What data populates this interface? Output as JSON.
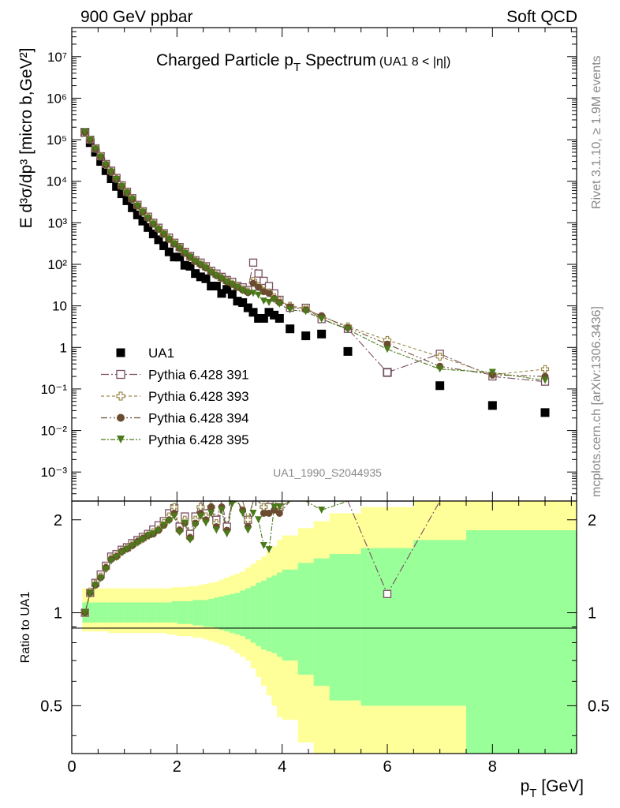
{
  "header": {
    "left": "900 GeV ppbar",
    "right": "Soft QCD"
  },
  "side_text": {
    "top": "Rivet 3.1.10, ≥ 1.9M events",
    "bottom": "mcplots.cern.ch [arXiv:1306.3436]"
  },
  "colors": {
    "band_outer": "#ffff99",
    "band_inner": "#99ff99",
    "ua1": "#000000",
    "p391": "#7b4f63",
    "p393": "#9a8a4c",
    "p394": "#6b4c30",
    "p395": "#4a7a1a"
  },
  "chart_data": [
    {
      "type": "scatter",
      "title": "Charged Particle p",
      "title_sub": "T",
      "title_tail": " Spectrum",
      "title_extra": "(UA1   8 < |η|)",
      "ylabel": "E d³σ/dp³ [micro b,GeV²]",
      "yscale": "log",
      "ylim": [
        0.0002,
        50000000
      ],
      "xlim": [
        0,
        9.6
      ],
      "yticks": [
        "10⁻³",
        "10⁻²",
        "10⁻¹",
        "1",
        "10",
        "10²",
        "10³",
        "10⁴",
        "10⁵",
        "10⁶",
        "10⁷"
      ],
      "watermark": "UA1_1990_S2044935",
      "legend_position": "left",
      "series": [
        {
          "name": "UA1",
          "marker": "filled-square",
          "x": [
            0.25,
            0.35,
            0.45,
            0.55,
            0.65,
            0.75,
            0.85,
            0.95,
            1.05,
            1.15,
            1.25,
            1.35,
            1.45,
            1.55,
            1.65,
            1.75,
            1.85,
            1.95,
            2.05,
            2.15,
            2.25,
            2.35,
            2.45,
            2.55,
            2.65,
            2.75,
            2.85,
            2.95,
            3.05,
            3.15,
            3.25,
            3.35,
            3.45,
            3.55,
            3.65,
            3.75,
            3.85,
            3.95,
            4.15,
            4.45,
            4.75,
            5.25,
            6.0,
            7.0,
            8.0,
            9.0
          ],
          "y": [
            150000,
            85000,
            50000,
            30000,
            18000,
            11500,
            7500,
            5000,
            3400,
            2300,
            1550,
            1100,
            770,
            540,
            390,
            280,
            200,
            150,
            150,
            95,
            90,
            60,
            50,
            45,
            30,
            30,
            20,
            25,
            19,
            13,
            12,
            9,
            7,
            5,
            5,
            7,
            6,
            5,
            2.8,
            1.9,
            2.1,
            0.8,
            0.25,
            0.12,
            0.04,
            0.027
          ]
        },
        {
          "name": "Pythia 6.428 391",
          "marker": "open-square",
          "x": [
            0.25,
            0.35,
            0.45,
            0.55,
            0.65,
            0.75,
            0.85,
            0.95,
            1.05,
            1.15,
            1.25,
            1.35,
            1.45,
            1.55,
            1.65,
            1.75,
            1.85,
            1.95,
            2.05,
            2.15,
            2.25,
            2.35,
            2.45,
            2.55,
            2.65,
            2.75,
            2.85,
            2.95,
            3.05,
            3.15,
            3.25,
            3.35,
            3.45,
            3.55,
            3.65,
            3.75,
            3.85,
            3.95,
            4.15,
            4.45,
            4.75,
            5.25,
            6.0,
            7.0,
            8.0,
            9.0
          ],
          "y": [
            150000,
            100000,
            62000,
            40000,
            26000,
            18000,
            12000,
            8000,
            5600,
            3900,
            2700,
            1900,
            1400,
            1000,
            760,
            560,
            440,
            330,
            260,
            200,
            160,
            125,
            110,
            90,
            70,
            60,
            50,
            42,
            38,
            30,
            28,
            24,
            110,
            60,
            40,
            30,
            20,
            14,
            9,
            9,
            4.8,
            2.8,
            0.25,
            0.7,
            0.2,
            0.15
          ],
          "ratio": [
            1.0,
            1.16,
            1.25,
            1.33,
            1.42,
            1.52,
            1.55,
            1.6,
            1.63,
            1.68,
            1.72,
            1.76,
            1.8,
            1.86,
            1.92,
            1.98,
            2.1,
            2.18,
            1.9,
            2.05,
            1.8,
            2.05,
            2.3,
            2.1,
            2.3,
            2.0,
            2.5,
            1.9,
            2.6,
            2.6,
            2.4,
            2.0,
            3.0,
            3.0,
            2.3,
            2.2,
            2.3,
            2.2,
            2.8,
            3.0,
            2.3,
            3.0,
            1.15,
            3.0,
            3.0,
            3.0
          ]
        },
        {
          "name": "Pythia 6.428 393",
          "marker": "open-cross",
          "x": [
            0.25,
            0.35,
            0.45,
            0.55,
            0.65,
            0.75,
            0.85,
            0.95,
            1.05,
            1.15,
            1.25,
            1.35,
            1.45,
            1.55,
            1.65,
            1.75,
            1.85,
            1.95,
            2.05,
            2.15,
            2.25,
            2.35,
            2.45,
            2.55,
            2.65,
            2.75,
            2.85,
            2.95,
            3.05,
            3.15,
            3.25,
            3.35,
            3.45,
            3.55,
            3.65,
            3.75,
            3.85,
            3.95,
            4.15,
            4.45,
            4.75,
            5.25,
            6.0,
            7.0,
            8.0,
            9.0
          ],
          "y": [
            150000,
            100000,
            61000,
            40000,
            25000,
            17000,
            11500,
            7700,
            5400,
            3800,
            2600,
            1850,
            1350,
            960,
            720,
            540,
            410,
            320,
            250,
            190,
            150,
            120,
            100,
            85,
            67,
            55,
            47,
            40,
            34,
            29,
            25,
            22,
            40,
            30,
            23,
            21,
            16,
            13,
            10,
            8.8,
            5.5,
            3.2,
            1.5,
            0.6,
            0.22,
            0.3
          ],
          "ratio": [
            1.0,
            1.17,
            1.24,
            1.31,
            1.4,
            1.5,
            1.53,
            1.58,
            1.62,
            1.66,
            1.7,
            1.74,
            1.78,
            1.82,
            1.86,
            1.95,
            2.05,
            2.2,
            1.85,
            2.0,
            1.75,
            2.0,
            2.2,
            2.05,
            2.2,
            1.95,
            2.4,
            2.3,
            2.4,
            2.45,
            2.3,
            2.0,
            2.6,
            2.5,
            2.2,
            2.4,
            2.3,
            2.2,
            2.8,
            3.0,
            2.6,
            3.0,
            3.0,
            3.0,
            3.0,
            3.0
          ]
        },
        {
          "name": "Pythia 6.428 394",
          "marker": "filled-circle",
          "x": [
            0.25,
            0.35,
            0.45,
            0.55,
            0.65,
            0.75,
            0.85,
            0.95,
            1.05,
            1.15,
            1.25,
            1.35,
            1.45,
            1.55,
            1.65,
            1.75,
            1.85,
            1.95,
            2.05,
            2.15,
            2.25,
            2.35,
            2.45,
            2.55,
            2.65,
            2.75,
            2.85,
            2.95,
            3.05,
            3.15,
            3.25,
            3.35,
            3.45,
            3.55,
            3.65,
            3.75,
            3.85,
            3.95,
            4.15,
            4.45,
            4.75,
            5.25,
            6.0,
            7.0,
            8.0,
            9.0
          ],
          "y": [
            150000,
            98000,
            60000,
            39000,
            25000,
            17000,
            11300,
            7500,
            5300,
            3700,
            2550,
            1800,
            1300,
            930,
            700,
            530,
            400,
            310,
            245,
            185,
            150,
            118,
            98,
            82,
            65,
            54,
            46,
            38,
            33,
            28,
            24,
            21,
            35,
            28,
            22,
            20,
            15,
            12,
            9.5,
            8,
            5.8,
            3,
            1.2,
            0.35,
            0.22,
            0.2
          ],
          "ratio": [
            1.0,
            1.16,
            1.23,
            1.3,
            1.4,
            1.49,
            1.52,
            1.58,
            1.61,
            1.65,
            1.7,
            1.74,
            1.78,
            1.8,
            1.85,
            1.92,
            2.0,
            2.1,
            1.85,
            1.95,
            1.75,
            1.95,
            2.1,
            2.0,
            2.2,
            1.9,
            2.2,
            1.85,
            2.3,
            2.4,
            2.15,
            1.9,
            2.4,
            2.3,
            2.1,
            2.1,
            2.15,
            2.1,
            2.8,
            3.0,
            2.5,
            3.0,
            3.0,
            2.35,
            3.0,
            3.0
          ]
        },
        {
          "name": "Pythia 6.428 395",
          "marker": "filled-triangle-down",
          "x": [
            0.25,
            0.35,
            0.45,
            0.55,
            0.65,
            0.75,
            0.85,
            0.95,
            1.05,
            1.15,
            1.25,
            1.35,
            1.45,
            1.55,
            1.65,
            1.75,
            1.85,
            1.95,
            2.05,
            2.15,
            2.25,
            2.35,
            2.45,
            2.55,
            2.65,
            2.75,
            2.85,
            2.95,
            3.05,
            3.15,
            3.25,
            3.35,
            3.45,
            3.55,
            3.65,
            3.75,
            3.85,
            3.95,
            4.15,
            4.45,
            4.75,
            5.25,
            6.0,
            7.0,
            8.0,
            9.0
          ],
          "y": [
            150000,
            97000,
            59000,
            38000,
            24500,
            16500,
            11000,
            7400,
            5200,
            3650,
            2500,
            1780,
            1280,
            920,
            690,
            520,
            395,
            305,
            240,
            182,
            148,
            116,
            96,
            80,
            63,
            52,
            44,
            37,
            32,
            27,
            23,
            20,
            20,
            18,
            13,
            12,
            14,
            11,
            8,
            7.3,
            4.8,
            2.7,
            0.9,
            0.3,
            0.25,
            0.16
          ],
          "ratio": [
            1.0,
            1.15,
            1.22,
            1.29,
            1.38,
            1.47,
            1.51,
            1.56,
            1.6,
            1.64,
            1.68,
            1.72,
            1.77,
            1.8,
            1.84,
            1.92,
            1.98,
            2.05,
            1.82,
            1.95,
            1.72,
            1.92,
            2.05,
            1.95,
            2.1,
            1.85,
            2.15,
            1.8,
            2.25,
            2.3,
            2.1,
            1.85,
            2.1,
            2.0,
            1.65,
            1.6,
            2.2,
            2.2,
            2.8,
            3.0,
            2.15,
            3.0,
            3.0,
            3.0,
            3.0,
            3.0
          ]
        }
      ]
    },
    {
      "type": "scatter",
      "ylabel": "Ratio to UA1",
      "yscale": "log",
      "ylim": [
        0.35,
        2.3
      ],
      "xlim": [
        0,
        9.6
      ],
      "xlabel": "p",
      "xlabel_sub": "T",
      "xlabel_tail": " [GeV]",
      "yticks": [
        "0.5",
        "1",
        "2"
      ],
      "xticks": [
        "0",
        "2",
        "4",
        "6",
        "8"
      ],
      "reference_line": 1,
      "bands": {
        "edges": [
          0.2,
          0.3,
          0.4,
          0.5,
          0.6,
          0.7,
          0.8,
          0.9,
          1.0,
          1.1,
          1.2,
          1.3,
          1.4,
          1.5,
          1.6,
          1.7,
          1.8,
          1.9,
          2.0,
          2.1,
          2.2,
          2.3,
          2.4,
          2.5,
          2.6,
          2.7,
          2.8,
          2.9,
          3.0,
          3.1,
          3.2,
          3.3,
          3.4,
          3.5,
          3.6,
          3.7,
          3.8,
          3.9,
          4.0,
          4.3,
          4.6,
          4.9,
          5.5,
          6.5,
          7.5,
          9.6
        ],
        "inner_low": [
          0.93,
          0.93,
          0.93,
          0.93,
          0.93,
          0.93,
          0.93,
          0.93,
          0.93,
          0.93,
          0.93,
          0.93,
          0.93,
          0.93,
          0.93,
          0.93,
          0.93,
          0.93,
          0.92,
          0.92,
          0.92,
          0.91,
          0.91,
          0.9,
          0.9,
          0.89,
          0.88,
          0.87,
          0.86,
          0.85,
          0.84,
          0.82,
          0.8,
          0.78,
          0.76,
          0.75,
          0.74,
          0.72,
          0.7,
          0.63,
          0.58,
          0.52,
          0.5,
          0.5,
          0.35
        ],
        "inner_high": [
          1.08,
          1.08,
          1.08,
          1.08,
          1.08,
          1.08,
          1.08,
          1.08,
          1.08,
          1.08,
          1.08,
          1.08,
          1.08,
          1.08,
          1.08,
          1.08,
          1.08,
          1.09,
          1.09,
          1.09,
          1.09,
          1.1,
          1.1,
          1.1,
          1.11,
          1.12,
          1.13,
          1.14,
          1.15,
          1.16,
          1.18,
          1.2,
          1.22,
          1.25,
          1.27,
          1.3,
          1.32,
          1.35,
          1.38,
          1.45,
          1.5,
          1.55,
          1.62,
          1.72,
          1.85
        ],
        "outer_low": [
          0.87,
          0.87,
          0.87,
          0.87,
          0.87,
          0.86,
          0.86,
          0.86,
          0.86,
          0.86,
          0.86,
          0.86,
          0.86,
          0.86,
          0.86,
          0.86,
          0.85,
          0.85,
          0.84,
          0.84,
          0.84,
          0.83,
          0.83,
          0.82,
          0.81,
          0.8,
          0.79,
          0.78,
          0.76,
          0.74,
          0.72,
          0.7,
          0.66,
          0.62,
          0.58,
          0.54,
          0.5,
          0.46,
          0.45,
          0.38,
          0.35,
          0.35,
          0.35,
          0.35,
          0.35
        ],
        "outer_high": [
          1.2,
          1.2,
          1.2,
          1.2,
          1.2,
          1.2,
          1.2,
          1.2,
          1.2,
          1.2,
          1.2,
          1.2,
          1.2,
          1.2,
          1.2,
          1.2,
          1.2,
          1.21,
          1.21,
          1.21,
          1.22,
          1.22,
          1.23,
          1.24,
          1.25,
          1.26,
          1.28,
          1.3,
          1.32,
          1.34,
          1.36,
          1.4,
          1.44,
          1.48,
          1.52,
          1.58,
          1.64,
          1.72,
          1.78,
          1.88,
          1.98,
          2.1,
          2.2,
          2.3,
          2.3
        ]
      }
    }
  ]
}
